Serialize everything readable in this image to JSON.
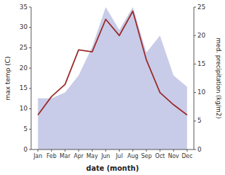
{
  "chart_data": {
    "type": "line",
    "categories": [
      "Jan",
      "Feb",
      "Mar",
      "Apr",
      "May",
      "Jun",
      "Jul",
      "Aug",
      "Sep",
      "Oct",
      "Nov",
      "Dec"
    ],
    "xlabel": "date (month)",
    "ylabel": "max temp (C)",
    "y2label": "med. precipitation (kg/m2)",
    "ylim": [
      0,
      35
    ],
    "yticks": [
      0,
      5,
      10,
      15,
      20,
      25,
      30,
      35
    ],
    "y2lim": [
      0,
      25
    ],
    "y2ticks": [
      0,
      5,
      10,
      15,
      20,
      25
    ],
    "series": [
      {
        "type": "area",
        "axis": "y2",
        "color": "#c8cce8",
        "values": [
          9,
          9,
          10,
          13,
          18,
          25,
          21,
          25,
          17,
          20,
          13,
          11
        ]
      },
      {
        "type": "line",
        "color": "#9b2b2b",
        "values": [
          8.5,
          13,
          16,
          24.5,
          24,
          32,
          28,
          34,
          22,
          14,
          11,
          8.5
        ]
      }
    ]
  }
}
